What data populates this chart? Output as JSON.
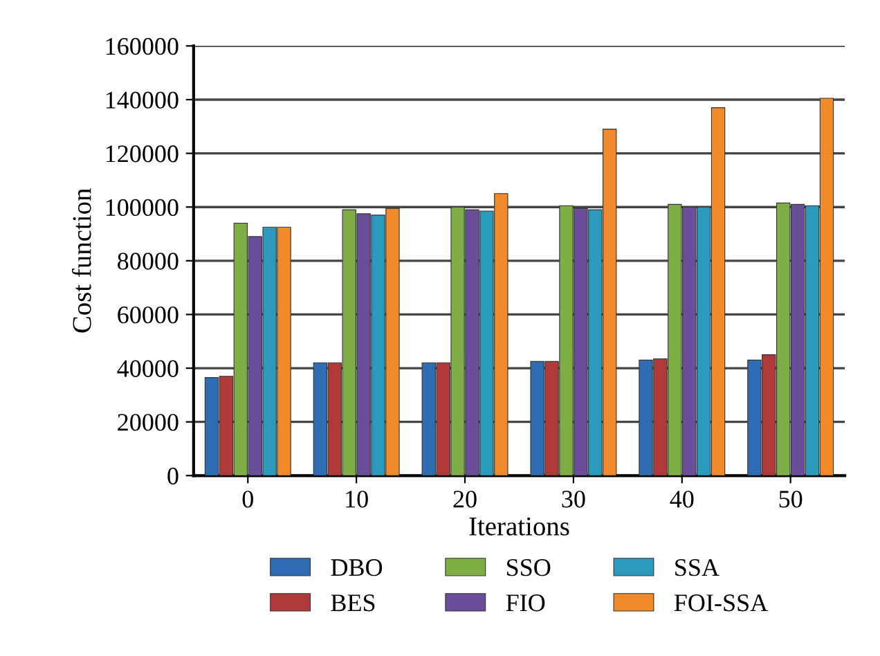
{
  "chart_data": {
    "type": "bar",
    "xlabel": "Iterations",
    "ylabel": "Cost function",
    "categories": [
      "0",
      "10",
      "20",
      "30",
      "40",
      "50"
    ],
    "series": [
      {
        "name": "DBO",
        "color": "#2e6db4",
        "values": [
          36500,
          42000,
          42000,
          42500,
          43000,
          43000
        ]
      },
      {
        "name": "BES",
        "color": "#b03a3a",
        "values": [
          37000,
          42000,
          42000,
          42500,
          43500,
          45000
        ]
      },
      {
        "name": "SSO",
        "color": "#7fae47",
        "values": [
          94000,
          99000,
          100000,
          100500,
          101000,
          101500
        ]
      },
      {
        "name": "FIO",
        "color": "#6a4e9a",
        "values": [
          89000,
          97500,
          99000,
          99500,
          100000,
          101000
        ]
      },
      {
        "name": "SSA",
        "color": "#2a9bbd",
        "values": [
          92500,
          97000,
          98500,
          99000,
          100000,
          100500
        ]
      },
      {
        "name": "FOI-SSA",
        "color": "#f08a2a",
        "values": [
          92500,
          99500,
          105000,
          129000,
          137000,
          140500
        ]
      }
    ],
    "ylim": [
      0,
      160000
    ],
    "yticks": [
      0,
      20000,
      40000,
      60000,
      80000,
      100000,
      120000,
      140000,
      160000
    ],
    "grid": "y",
    "legend": "bottom"
  }
}
